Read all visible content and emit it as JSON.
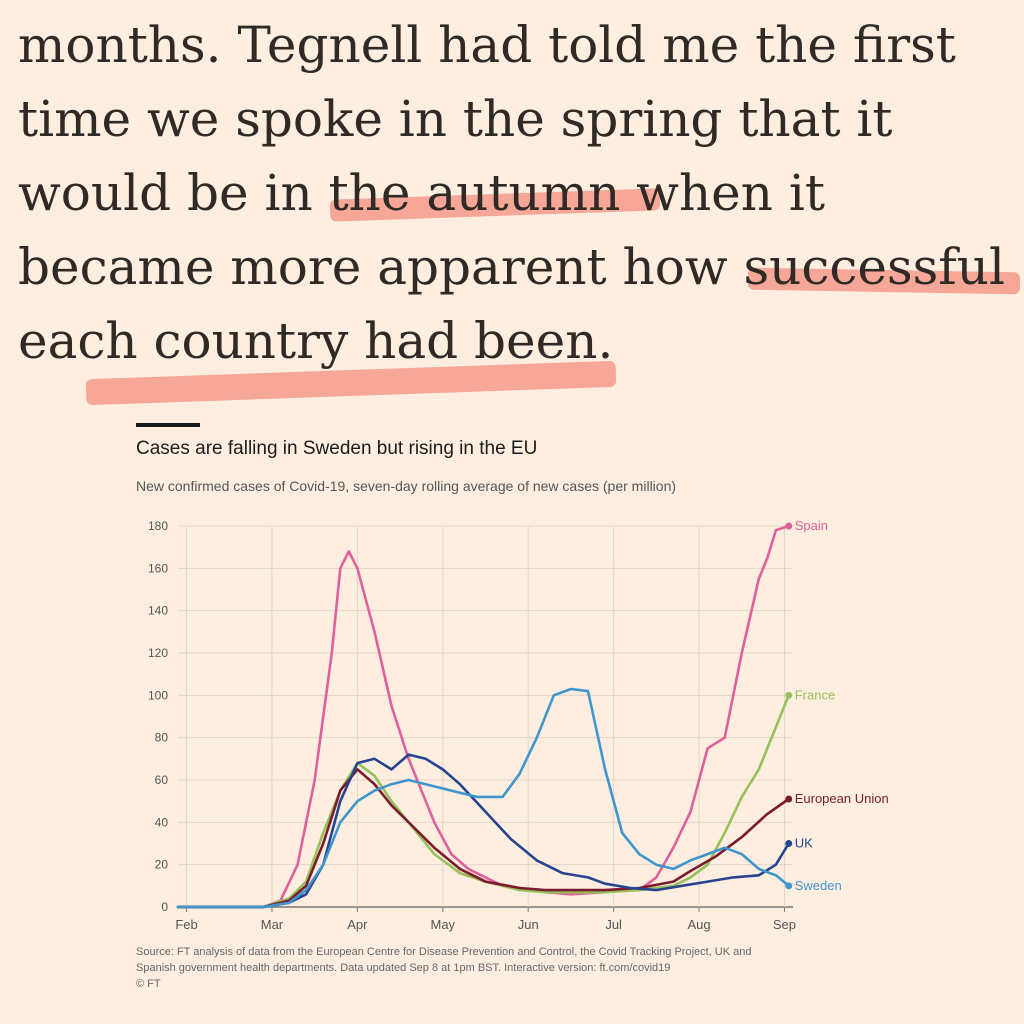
{
  "article": {
    "lines": [
      "months. Tegnell had told me the first",
      "time we spoke in the spring that it",
      "would be in the autumn when it",
      "became more apparent how successful",
      "each country had been."
    ]
  },
  "chart": {
    "title": "Cases are falling in Sweden but rising in the EU",
    "subtitle": "New confirmed cases of Covid-19, seven-day rolling average of new cases (per million)",
    "source_line1": "Source: FT analysis of data from the European Centre for Disease Prevention and Control, the Covid Tracking Project, UK and",
    "source_line2": "Spanish government health departments. Data updated Sep 8 at 1pm BST. Interactive version: ft.com/covid19",
    "copyright": "© FT"
  },
  "chart_data": {
    "type": "line",
    "title": "Cases are falling in Sweden but rising in the EU",
    "ylabel": "New confirmed cases of Covid-19, seven-day rolling average of new cases (per million)",
    "xlabel": "",
    "x_ticks": [
      "Feb",
      "Mar",
      "Apr",
      "May",
      "Jun",
      "Jul",
      "Aug",
      "Sep"
    ],
    "y_ticks": [
      0,
      20,
      40,
      60,
      80,
      100,
      120,
      140,
      160,
      180
    ],
    "ylim": [
      0,
      180
    ],
    "x_range": [
      0,
      7.2
    ],
    "grid": true,
    "series": [
      {
        "name": "Spain",
        "color": "#e0609a",
        "x": [
          0,
          1,
          1.2,
          1.4,
          1.6,
          1.8,
          1.9,
          2.0,
          2.1,
          2.3,
          2.5,
          2.7,
          3.0,
          3.2,
          3.4,
          3.6,
          3.8,
          4.0,
          4.3,
          4.6,
          5.0,
          5.2,
          5.4,
          5.6,
          5.8,
          6.0,
          6.2,
          6.4,
          6.6,
          6.8,
          6.9,
          7.0,
          7.15
        ],
        "y": [
          0,
          0,
          3,
          20,
          60,
          120,
          160,
          168,
          160,
          130,
          95,
          70,
          40,
          25,
          18,
          14,
          10,
          9,
          7,
          6,
          7,
          8,
          8,
          14,
          28,
          45,
          75,
          80,
          120,
          155,
          165,
          178,
          180
        ]
      },
      {
        "name": "France",
        "color": "#96c15a",
        "x": [
          0,
          1,
          1.3,
          1.5,
          1.7,
          1.9,
          2.1,
          2.3,
          2.5,
          2.7,
          3.0,
          3.3,
          3.6,
          4.0,
          4.3,
          4.6,
          5.0,
          5.4,
          5.8,
          6.0,
          6.2,
          6.4,
          6.6,
          6.8,
          7.0,
          7.15
        ],
        "y": [
          0,
          0,
          4,
          12,
          35,
          55,
          68,
          62,
          50,
          40,
          25,
          16,
          12,
          8,
          7,
          7,
          7,
          8,
          10,
          14,
          20,
          35,
          52,
          65,
          85,
          100
        ]
      },
      {
        "name": "European Union",
        "color": "#7a1c2e",
        "x": [
          0,
          1,
          1.3,
          1.5,
          1.7,
          1.9,
          2.1,
          2.3,
          2.5,
          2.7,
          3.0,
          3.3,
          3.6,
          4.0,
          4.3,
          4.6,
          5.0,
          5.4,
          5.8,
          6.0,
          6.3,
          6.6,
          6.9,
          7.15
        ],
        "y": [
          0,
          0,
          3,
          10,
          30,
          55,
          65,
          58,
          48,
          40,
          28,
          18,
          12,
          9,
          8,
          8,
          8,
          9,
          12,
          17,
          24,
          33,
          44,
          51
        ]
      },
      {
        "name": "UK",
        "color": "#26448f",
        "x": [
          0,
          1,
          1.3,
          1.5,
          1.7,
          1.9,
          2.1,
          2.3,
          2.5,
          2.7,
          2.9,
          3.1,
          3.3,
          3.6,
          3.9,
          4.2,
          4.5,
          4.8,
          5.0,
          5.3,
          5.6,
          5.9,
          6.2,
          6.5,
          6.8,
          7.0,
          7.15
        ],
        "y": [
          0,
          0,
          2,
          6,
          20,
          50,
          68,
          70,
          65,
          72,
          70,
          65,
          58,
          45,
          32,
          22,
          16,
          14,
          11,
          9,
          8,
          10,
          12,
          14,
          15,
          20,
          30
        ]
      },
      {
        "name": "Sweden",
        "color": "#3f96cc",
        "x": [
          0,
          1,
          1.3,
          1.5,
          1.7,
          1.9,
          2.1,
          2.3,
          2.5,
          2.7,
          3.0,
          3.2,
          3.5,
          3.8,
          4.0,
          4.2,
          4.4,
          4.6,
          4.8,
          5.0,
          5.2,
          5.4,
          5.6,
          5.8,
          6.0,
          6.2,
          6.4,
          6.6,
          6.8,
          7.0,
          7.15
        ],
        "y": [
          0,
          0,
          2,
          8,
          20,
          40,
          50,
          55,
          58,
          60,
          57,
          55,
          52,
          52,
          63,
          80,
          100,
          103,
          102,
          65,
          35,
          25,
          20,
          18,
          22,
          25,
          28,
          25,
          18,
          15,
          10
        ]
      }
    ]
  },
  "highlight_color": "#f49a8a"
}
